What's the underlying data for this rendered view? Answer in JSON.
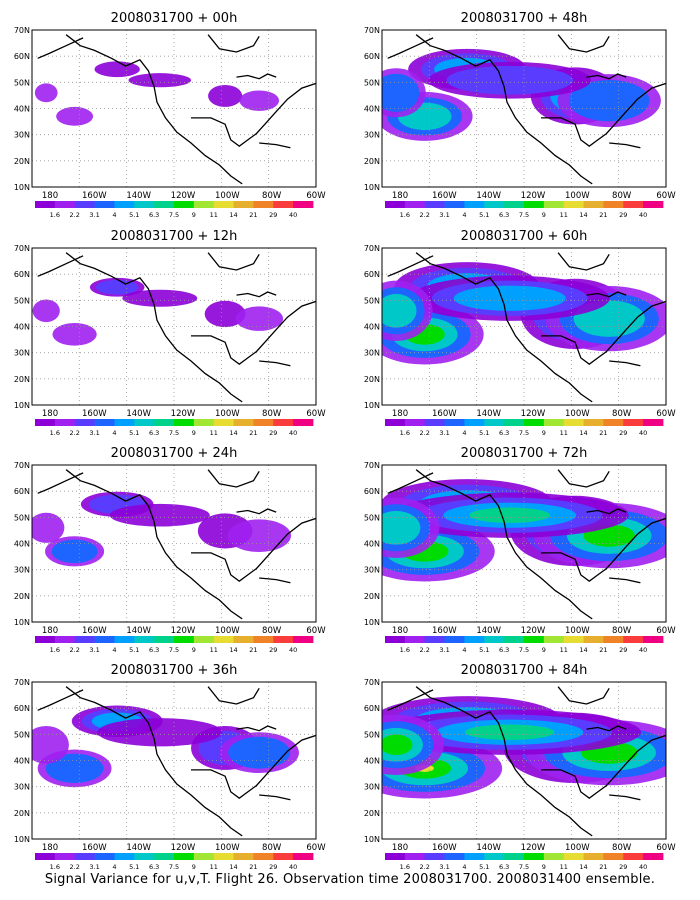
{
  "lat_ticks": [
    "70N",
    "60N",
    "50N",
    "40N",
    "30N",
    "20N",
    "10N"
  ],
  "lon_ticks": [
    "180",
    "160W",
    "140W",
    "120W",
    "100W",
    "80W",
    "60W"
  ],
  "colorbar": {
    "labels": [
      "1.6",
      "2.2",
      "3.1",
      "4",
      "5.1",
      "6.3",
      "7.5",
      "9",
      "11",
      "14",
      "21",
      "29",
      "40"
    ],
    "colors": [
      "#8c00d7",
      "#a020f0",
      "#5a3cff",
      "#1e64ff",
      "#00a0ff",
      "#00c8c8",
      "#00d28c",
      "#00dc00",
      "#a0e632",
      "#e6dc32",
      "#e6af2d",
      "#f08228",
      "#fa3c3c",
      "#f00082"
    ]
  },
  "panels": [
    {
      "title": "2008031700 + 00h",
      "lead_hours": 0,
      "intensity": 0.5
    },
    {
      "title": "2008031700 + 12h",
      "lead_hours": 12,
      "intensity": 0.6
    },
    {
      "title": "2008031700 + 24h",
      "lead_hours": 24,
      "intensity": 0.8
    },
    {
      "title": "2008031700 + 36h",
      "lead_hours": 36,
      "intensity": 1.0
    },
    {
      "title": "2008031700 + 48h",
      "lead_hours": 48,
      "intensity": 1.3
    },
    {
      "title": "2008031700 + 60h",
      "lead_hours": 60,
      "intensity": 1.6
    },
    {
      "title": "2008031700 + 72h",
      "lead_hours": 72,
      "intensity": 1.9
    },
    {
      "title": "2008031700 + 84h",
      "lead_hours": 84,
      "intensity": 2.1
    }
  ],
  "caption": "Signal Variance for u,v,T. Flight 26. Observation time 2008031700. 2008031400 ensemble."
}
